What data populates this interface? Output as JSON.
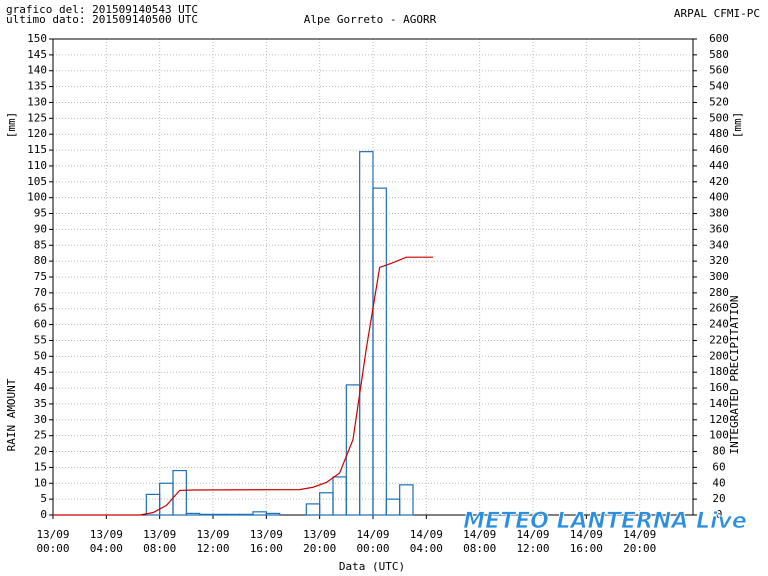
{
  "chart_data": {
    "type": "bar_line",
    "header_left": [
      "grafico del: 201509140543 UTC",
      "ultimo dato: 201509140500 UTC"
    ],
    "title": "Alpe Gorreto - AGORR",
    "header_right": "ARPAL CFMI-PC",
    "ylabel": "RAIN AMOUNT",
    "y2label": "INTEGRATED PRECIPITATION",
    "yunit": "[mm]",
    "y2unit": "[mm]",
    "xlabel": "Data (UTC)",
    "watermark": "METEO LANTERNA Live",
    "xlim": [
      0,
      48
    ],
    "xticks": [
      {
        "value": 0,
        "label": "13/09 00:00"
      },
      {
        "value": 4,
        "label": "13/09 04:00"
      },
      {
        "value": 8,
        "label": "13/09 08:00"
      },
      {
        "value": 12,
        "label": "13/09 12:00"
      },
      {
        "value": 16,
        "label": "13/09 16:00"
      },
      {
        "value": 20,
        "label": "13/09 20:00"
      },
      {
        "value": 24,
        "label": "14/09 00:00"
      },
      {
        "value": 28,
        "label": "14/09 04:00"
      },
      {
        "value": 32,
        "label": "14/09 08:00"
      },
      {
        "value": 36,
        "label": "14/09 12:00"
      },
      {
        "value": 40,
        "label": "14/09 16:00"
      },
      {
        "value": 44,
        "label": "14/09 20:00"
      }
    ],
    "ylim": [
      0,
      150
    ],
    "yticks": [
      0,
      5,
      10,
      15,
      20,
      25,
      30,
      35,
      40,
      45,
      50,
      55,
      60,
      65,
      70,
      75,
      80,
      85,
      90,
      95,
      100,
      105,
      110,
      115,
      120,
      125,
      130,
      135,
      140,
      145,
      150
    ],
    "y2lim": [
      0,
      600
    ],
    "y2ticks": [
      0,
      20,
      40,
      60,
      80,
      100,
      120,
      140,
      160,
      180,
      200,
      220,
      240,
      260,
      280,
      300,
      320,
      340,
      360,
      380,
      400,
      420,
      440,
      460,
      480,
      500,
      520,
      540,
      560,
      580,
      600
    ],
    "grid": true,
    "bars": {
      "color": "#1f6fb4",
      "bins": [
        0,
        1,
        2,
        3,
        4,
        5,
        6,
        7,
        8,
        9,
        10,
        11,
        12,
        13,
        14,
        15,
        16,
        17,
        18,
        19,
        20,
        21,
        22,
        23,
        24,
        25,
        26,
        27,
        28
      ],
      "values": [
        0,
        0,
        0,
        0,
        0,
        0,
        0,
        6.5,
        10,
        14,
        0.5,
        0.2,
        0.2,
        0.2,
        0.2,
        1,
        0.5,
        0,
        0,
        3.5,
        7,
        12,
        41,
        114.5,
        103,
        5,
        9.5,
        0
      ]
    },
    "line": {
      "color": "#cc0000",
      "axis": "y2",
      "x": [
        0,
        6.5,
        7.5,
        8.5,
        9.5,
        10.5,
        18.5,
        19.5,
        20.5,
        21.5,
        22.5,
        23.5,
        24.5,
        25.5,
        26.5,
        28.5
      ],
      "values": [
        0,
        0,
        3,
        12,
        31,
        31.5,
        32,
        35,
        41,
        53,
        95,
        210,
        312,
        318,
        325,
        325
      ]
    }
  }
}
